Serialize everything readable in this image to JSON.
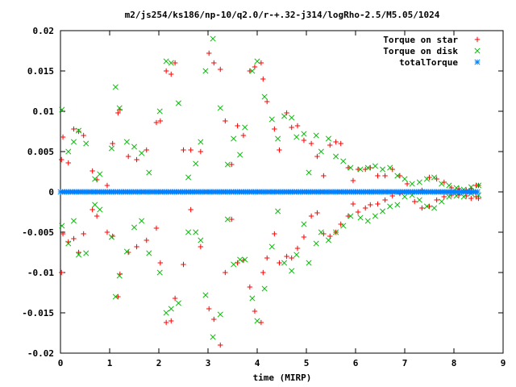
{
  "chart_data": {
    "type": "scatter",
    "title": "m2/js254/ks186/np-10/q2.0/r-+.32-j314/logRho-2.5/M5.05/1024",
    "xlabel": "time (MIRP)",
    "ylabel": "",
    "xlim": [
      0,
      9
    ],
    "ylim": [
      -0.02,
      0.02
    ],
    "x_ticks": [
      "0",
      "1",
      "2",
      "3",
      "4",
      "5",
      "6",
      "7",
      "8",
      "9"
    ],
    "y_ticks": [
      "-0.02",
      "-0.015",
      "-0.01",
      "-0.005",
      "0",
      "0.005",
      "0.01",
      "0.015",
      "0.02"
    ],
    "legend_position": "top-right",
    "grid": false,
    "series": [
      {
        "name": "Torque on star",
        "marker": "+",
        "color": "#ff0000",
        "x": [
          0.02,
          0.05,
          0.16,
          0.27,
          0.37,
          0.47,
          0.65,
          0.74,
          0.95,
          1.06,
          1.17,
          1.21,
          1.38,
          1.55,
          1.75,
          1.95,
          2.03,
          2.15,
          2.25,
          2.33,
          2.5,
          2.65,
          2.85,
          3.02,
          3.12,
          3.25,
          3.35,
          3.48,
          3.6,
          3.72,
          3.85,
          3.95,
          4.08,
          4.12,
          4.2,
          4.35,
          4.45,
          4.6,
          4.7,
          4.82,
          4.95,
          5.1,
          5.22,
          5.35,
          5.48,
          5.6,
          5.7,
          5.85,
          5.95,
          6.05,
          6.2,
          6.3,
          6.45,
          6.6,
          6.75,
          6.9,
          7.05,
          7.2,
          7.35,
          7.5,
          7.65,
          7.8,
          7.95,
          8.1,
          8.25,
          8.35,
          8.45,
          8.5,
          0.02,
          0.05,
          0.16,
          0.27,
          0.37,
          0.47,
          0.65,
          0.74,
          0.95,
          1.06,
          1.17,
          1.21,
          1.38,
          1.55,
          1.75,
          1.95,
          2.03,
          2.15,
          2.25,
          2.33,
          2.5,
          2.65,
          2.85,
          3.02,
          3.12,
          3.25,
          3.35,
          3.48,
          3.6,
          3.72,
          3.85,
          3.95,
          4.08,
          4.12,
          4.2,
          4.35,
          4.45,
          4.6,
          4.7,
          4.82,
          4.95,
          5.1,
          5.22,
          5.35,
          5.48,
          5.6,
          5.7,
          5.85,
          5.95,
          6.05,
          6.2,
          6.3,
          6.45,
          6.6,
          6.75,
          6.9,
          7.05,
          7.2,
          7.35,
          7.5,
          7.65,
          7.8,
          7.95,
          8.1,
          8.25,
          8.35,
          8.45,
          8.5
        ],
        "y": [
          0.004,
          0.0068,
          0.0036,
          0.0078,
          0.0075,
          0.007,
          0.0026,
          0.0015,
          0.0008,
          0.006,
          0.0098,
          0.0102,
          0.0044,
          0.004,
          0.0052,
          0.0086,
          0.0088,
          0.015,
          0.0146,
          0.016,
          0.0052,
          0.0052,
          0.005,
          0.0172,
          0.016,
          0.0152,
          0.0088,
          0.0034,
          0.0082,
          0.007,
          0.015,
          0.0155,
          0.016,
          0.014,
          0.0112,
          0.0078,
          0.0052,
          0.0098,
          0.008,
          0.0082,
          0.0064,
          0.006,
          0.0044,
          0.002,
          0.0058,
          0.0062,
          0.006,
          0.003,
          0.0014,
          0.0028,
          0.0028,
          0.003,
          0.002,
          0.002,
          0.0028,
          0.002,
          0.001,
          0.0,
          0.0002,
          0.0018,
          0.0016,
          0.0012,
          0.0005,
          0.0004,
          0.0002,
          0.0004,
          0.0008,
          0.0008,
          -0.01,
          -0.0052,
          -0.0062,
          -0.0058,
          -0.0075,
          -0.0052,
          -0.0022,
          -0.003,
          -0.005,
          -0.0055,
          -0.013,
          -0.0102,
          -0.0075,
          -0.0068,
          -0.006,
          -0.0045,
          -0.0088,
          -0.0162,
          -0.016,
          -0.0132,
          -0.009,
          -0.0022,
          -0.0068,
          -0.0145,
          -0.0158,
          -0.019,
          -0.01,
          -0.0034,
          -0.0088,
          -0.0085,
          -0.0118,
          -0.0148,
          -0.0162,
          -0.01,
          -0.0082,
          -0.0052,
          -0.0088,
          -0.008,
          -0.0082,
          -0.007,
          -0.0056,
          -0.003,
          -0.0026,
          -0.0052,
          -0.0055,
          -0.005,
          -0.004,
          -0.003,
          -0.0015,
          -0.0025,
          -0.002,
          -0.0016,
          -0.0015,
          -0.001,
          -0.0005,
          -0.0002,
          0.0,
          -0.0012,
          -0.002,
          -0.0018,
          -0.001,
          -0.0006,
          -0.0004,
          -0.0004,
          -0.0005,
          -0.0008,
          -0.0006,
          -0.0008
        ]
      },
      {
        "name": "Torque on disk",
        "marker": "x",
        "color": "#00bb00",
        "x": [
          0.03,
          0.16,
          0.27,
          0.37,
          0.52,
          0.7,
          0.8,
          1.04,
          1.12,
          1.2,
          1.35,
          1.5,
          1.65,
          1.8,
          2.02,
          2.15,
          2.25,
          2.4,
          2.6,
          2.75,
          2.85,
          2.95,
          3.1,
          3.25,
          3.4,
          3.52,
          3.65,
          3.75,
          3.9,
          4.0,
          4.15,
          4.3,
          4.42,
          4.55,
          4.7,
          4.8,
          4.95,
          5.05,
          5.2,
          5.3,
          5.45,
          5.6,
          5.75,
          5.9,
          6.1,
          6.25,
          6.4,
          6.55,
          6.7,
          6.85,
          7.0,
          7.15,
          7.3,
          7.45,
          7.6,
          7.75,
          7.9,
          8.05,
          8.2,
          8.35,
          8.5,
          0.03,
          0.16,
          0.27,
          0.37,
          0.52,
          0.7,
          0.8,
          1.04,
          1.12,
          1.2,
          1.35,
          1.5,
          1.65,
          1.8,
          2.02,
          2.15,
          2.25,
          2.4,
          2.6,
          2.75,
          2.85,
          2.95,
          3.1,
          3.25,
          3.4,
          3.52,
          3.65,
          3.75,
          3.9,
          4.0,
          4.15,
          4.3,
          4.42,
          4.55,
          4.7,
          4.8,
          4.95,
          5.05,
          5.2,
          5.3,
          5.45,
          5.6,
          5.75,
          5.9,
          6.1,
          6.25,
          6.4,
          6.55,
          6.7,
          6.85,
          7.0,
          7.15,
          7.3,
          7.45,
          7.6,
          7.75,
          7.9,
          8.05,
          8.2,
          8.35,
          8.5
        ],
        "y": [
          0.0102,
          0.005,
          0.0062,
          0.0076,
          0.006,
          0.0016,
          0.0022,
          0.0054,
          0.013,
          0.0104,
          0.0062,
          0.0056,
          0.0048,
          0.0024,
          0.01,
          0.0162,
          0.016,
          0.011,
          0.0018,
          0.0035,
          0.0062,
          0.015,
          0.019,
          0.0104,
          0.0034,
          0.0066,
          0.0046,
          0.008,
          0.015,
          0.0162,
          0.0118,
          0.009,
          0.0066,
          0.0094,
          0.0092,
          0.0068,
          0.0072,
          0.0024,
          0.007,
          0.005,
          0.0066,
          0.0044,
          0.0038,
          0.003,
          0.0028,
          0.003,
          0.0032,
          0.0028,
          0.003,
          0.002,
          0.0016,
          0.001,
          0.0012,
          0.0016,
          0.0018,
          0.001,
          0.0008,
          0.0005,
          0.0003,
          0.0006,
          0.0008,
          -0.0042,
          -0.0064,
          -0.0036,
          -0.0078,
          -0.0076,
          -0.0016,
          -0.0022,
          -0.0056,
          -0.013,
          -0.0104,
          -0.0074,
          -0.0044,
          -0.0036,
          -0.0076,
          -0.01,
          -0.015,
          -0.0145,
          -0.0138,
          -0.005,
          -0.005,
          -0.006,
          -0.0128,
          -0.018,
          -0.0152,
          -0.0034,
          -0.009,
          -0.0084,
          -0.0084,
          -0.0132,
          -0.016,
          -0.012,
          -0.0068,
          -0.0024,
          -0.0088,
          -0.0098,
          -0.0078,
          -0.004,
          -0.0088,
          -0.0064,
          -0.005,
          -0.006,
          -0.005,
          -0.0042,
          -0.003,
          -0.0032,
          -0.0036,
          -0.003,
          -0.0024,
          -0.0018,
          -0.0016,
          -0.0006,
          -0.0004,
          -0.001,
          -0.0018,
          -0.002,
          -0.0012,
          -0.0006,
          -0.0005,
          -0.0006,
          -0.0002,
          -0.0004
        ]
      },
      {
        "name": "totalTorque",
        "marker": "*",
        "color": "#0080ff",
        "x_start": 0.0,
        "x_end": 8.5,
        "x_step": 0.04,
        "y_constant": 0.0
      }
    ]
  }
}
